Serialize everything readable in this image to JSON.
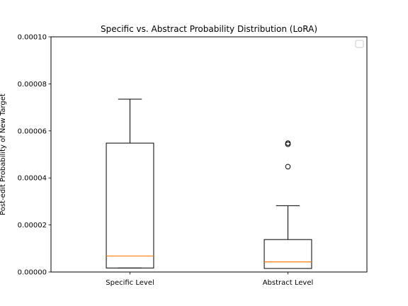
{
  "chart_data": {
    "type": "box",
    "title": "Specific vs. Abstract Probability Distribution (LoRA)",
    "xlabel": "",
    "ylabel": "Post-edit Probability of New Target",
    "categories": [
      "Specific Level",
      "Abstract Level"
    ],
    "ylim": [
      0,
      0.0001
    ],
    "yticks": [
      "0.00000",
      "0.00002",
      "0.00004",
      "0.00006",
      "0.00008",
      "0.00010"
    ],
    "ytick_values": [
      0,
      2e-05,
      4e-05,
      6e-05,
      8e-05,
      0.0001
    ],
    "legend": {
      "placement": "top-right",
      "entries": []
    },
    "grid": false,
    "boxes": [
      {
        "category": "Specific Level",
        "whisker_low": 1.7e-06,
        "q1": 1.7e-06,
        "median": 6.8e-06,
        "q3": 5.48e-05,
        "whisker_high": 7.35e-05,
        "fliers": []
      },
      {
        "category": "Abstract Level",
        "whisker_low": 1.5e-06,
        "q1": 1.5e-06,
        "median": 4.3e-06,
        "q3": 1.38e-05,
        "whisker_high": 2.82e-05,
        "fliers": [
          4.48e-05,
          5.43e-05,
          5.48e-05
        ]
      }
    ],
    "colors": {
      "box": "#000000",
      "median": "#ff7f0e",
      "flier": "#000000",
      "legend_frame": "#cccccc"
    }
  }
}
